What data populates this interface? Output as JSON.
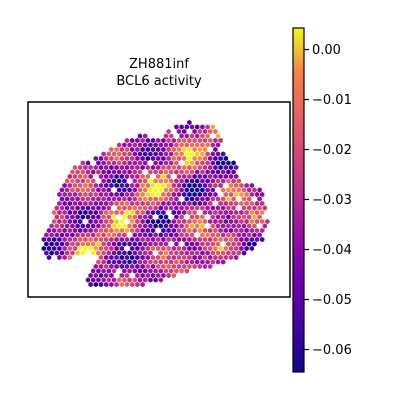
{
  "chart_data": {
    "type": "heatmap",
    "subtype": "hexbin spatial map",
    "title_lines": [
      "ZH881inf",
      "BCL6 activity"
    ],
    "grid": false,
    "axes_visible": false,
    "colormap": "plasma",
    "colorbar": {
      "location": "right",
      "vmin": -0.0645,
      "vmax": 0.0043,
      "ticks": [
        0.0,
        -0.01,
        -0.02,
        -0.03,
        -0.04,
        -0.05,
        -0.06
      ],
      "tick_labels": [
        "0.00",
        "−0.01",
        "−0.02",
        "−0.03",
        "−0.04",
        "−0.05",
        "−0.06"
      ]
    },
    "value_range_observed": [
      -0.064,
      0.0
    ],
    "note_values": "per-spot values not individually readable; spots range roughly -0.064 to 0.00",
    "colors": {
      "low": "#0d0887",
      "mid": "#cc4778",
      "high": "#f0f921",
      "frame": "#000000"
    }
  }
}
